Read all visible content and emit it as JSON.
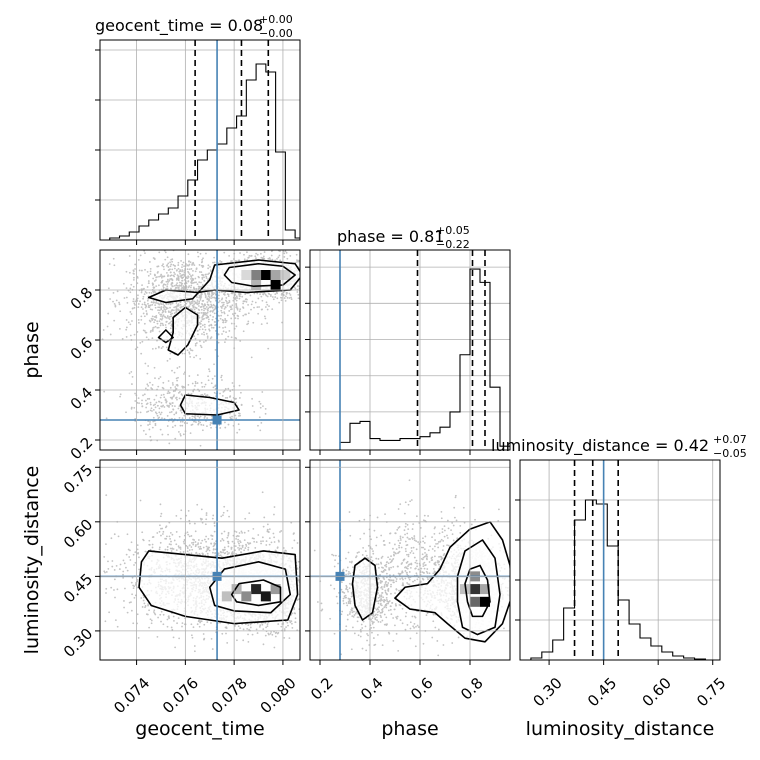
{
  "chart_data": {
    "type": "corner",
    "parameters": [
      "geocent_time",
      "phase",
      "luminosity_distance"
    ],
    "truths": {
      "geocent_time": 0.0773,
      "phase": 0.28,
      "luminosity_distance": 0.45
    },
    "truth_color": "#4682b4",
    "colors": {
      "grid": "#b0b0b0",
      "hist": "#000000",
      "truth": "#4682b4"
    },
    "titles": {
      "geocent_time": {
        "text": "geocent_time = 0.08",
        "plus": "+0.00",
        "minus": "−0.00"
      },
      "phase": {
        "text": "phase = 0.81",
        "plus": "+0.05",
        "minus": "−0.22"
      },
      "luminosity_distance": {
        "text": "luminosity_distance = 0.42",
        "plus": "+0.07",
        "minus": "−0.05"
      }
    },
    "axis_labels": {
      "x": [
        "geocent_time",
        "phase",
        "luminosity_distance"
      ],
      "y": [
        "phase",
        "luminosity_distance"
      ]
    },
    "ranges": {
      "geocent_time": [
        0.0725,
        0.0807
      ],
      "phase": [
        0.16,
        0.96
      ],
      "luminosity_distance": [
        0.22,
        0.77
      ]
    },
    "ticks": {
      "geocent_time": [
        0.074,
        0.076,
        0.078,
        0.08
      ],
      "phase_x": [
        0.2,
        0.4,
        0.6,
        0.8
      ],
      "phase_y": [
        0.2,
        0.4,
        0.6,
        0.8
      ],
      "luminosity_distance": [
        0.3,
        0.45,
        0.6,
        0.75
      ]
    },
    "tick_labels": {
      "geocent_time": [
        "0.074",
        "0.076",
        "0.078",
        "0.080"
      ],
      "phase_x": [
        "0.2",
        "0.4",
        "0.6",
        "0.8"
      ],
      "phase_y": [
        "0.2",
        "0.4",
        "0.6",
        "0.8"
      ],
      "luminosity_distance": [
        "0.30",
        "0.45",
        "0.60",
        "0.75"
      ]
    },
    "quantiles": {
      "geocent_time": [
        0.0764,
        0.0783,
        0.0794
      ],
      "phase": [
        0.59,
        0.81,
        0.86
      ],
      "luminosity_distance": [
        0.37,
        0.42,
        0.49
      ]
    },
    "histograms": {
      "geocent_time": {
        "edges": [
          0.0725,
          0.0729,
          0.0733,
          0.0737,
          0.0741,
          0.0745,
          0.0749,
          0.0753,
          0.0757,
          0.0761,
          0.0765,
          0.0769,
          0.0773,
          0.0777,
          0.0781,
          0.0785,
          0.0789,
          0.0793,
          0.0797,
          0.0801,
          0.0805,
          0.0807
        ],
        "values": [
          0.0,
          0.01,
          0.02,
          0.04,
          0.07,
          0.1,
          0.13,
          0.16,
          0.22,
          0.3,
          0.4,
          0.45,
          0.48,
          0.56,
          0.62,
          0.8,
          0.88,
          0.84,
          0.44,
          0.05,
          0.01
        ]
      },
      "phase": {
        "edges": [
          0.16,
          0.2,
          0.24,
          0.28,
          0.32,
          0.36,
          0.4,
          0.44,
          0.48,
          0.52,
          0.56,
          0.6,
          0.64,
          0.68,
          0.72,
          0.76,
          0.8,
          0.84,
          0.88,
          0.92,
          0.96
        ],
        "values": [
          0.0,
          0.0,
          0.0,
          0.04,
          0.14,
          0.15,
          0.06,
          0.05,
          0.05,
          0.06,
          0.06,
          0.07,
          0.09,
          0.12,
          0.2,
          0.5,
          0.95,
          0.88,
          0.33,
          0.02
        ]
      },
      "luminosity_distance": {
        "edges": [
          0.22,
          0.25,
          0.28,
          0.31,
          0.34,
          0.37,
          0.4,
          0.43,
          0.46,
          0.49,
          0.52,
          0.55,
          0.58,
          0.61,
          0.64,
          0.67,
          0.7,
          0.73,
          0.77
        ],
        "values": [
          0.0,
          0.01,
          0.04,
          0.1,
          0.26,
          0.7,
          0.8,
          0.78,
          0.57,
          0.3,
          0.18,
          0.11,
          0.07,
          0.04,
          0.02,
          0.01,
          0.005,
          0.0
        ]
      }
    },
    "hist_ylim": {
      "geocent_time": [
        0,
        1.0
      ],
      "phase": [
        0,
        1.05
      ],
      "luminosity_distance": [
        0,
        1.0
      ]
    },
    "hist_yticks": {
      "geocent_time": [
        0.2,
        0.45,
        0.7,
        0.95
      ],
      "phase": [
        0.2,
        0.39,
        0.58,
        0.77,
        0.96
      ],
      "luminosity_distance": [
        0.2,
        0.4,
        0.6,
        0.8
      ]
    },
    "pairs": [
      {
        "x": "geocent_time",
        "y": "phase",
        "blobs": [
          {
            "cx": 0.0793,
            "cy": 0.85,
            "sx": 0.0009,
            "sy": 0.045,
            "n": 900
          },
          {
            "cx": 0.076,
            "cy": 0.76,
            "sx": 0.0012,
            "sy": 0.09,
            "n": 1400
          },
          {
            "cx": 0.0762,
            "cy": 0.34,
            "sx": 0.0012,
            "sy": 0.06,
            "n": 500
          }
        ],
        "density_cells": [
          {
            "x": 0.0793,
            "y": 0.86,
            "v": 1.0
          },
          {
            "x": 0.0797,
            "y": 0.82,
            "v": 1.0
          },
          {
            "x": 0.0789,
            "y": 0.86,
            "v": 0.5
          },
          {
            "x": 0.0797,
            "y": 0.86,
            "v": 0.35
          },
          {
            "x": 0.0789,
            "y": 0.82,
            "v": 0.3
          },
          {
            "x": 0.0801,
            "y": 0.86,
            "v": 0.2
          },
          {
            "x": 0.0785,
            "y": 0.86,
            "v": 0.15
          }
        ],
        "contours": [
          [
            [
              0.0778,
              0.89
            ],
            [
              0.079,
              0.905
            ],
            [
              0.08,
              0.895
            ],
            [
              0.0805,
              0.86
            ],
            [
              0.08,
              0.82
            ],
            [
              0.0788,
              0.815
            ],
            [
              0.0779,
              0.83
            ],
            [
              0.0776,
              0.86
            ],
            [
              0.0778,
              0.89
            ]
          ],
          [
            [
              0.0772,
              0.9
            ],
            [
              0.079,
              0.92
            ],
            [
              0.0805,
              0.905
            ],
            [
              0.0808,
              0.86
            ],
            [
              0.0803,
              0.8
            ],
            [
              0.0785,
              0.79
            ],
            [
              0.0772,
              0.8
            ],
            [
              0.0765,
              0.79
            ],
            [
              0.0752,
              0.8
            ],
            [
              0.0745,
              0.77
            ],
            [
              0.0752,
              0.75
            ],
            [
              0.0763,
              0.765
            ],
            [
              0.077,
              0.84
            ],
            [
              0.0772,
              0.9
            ]
          ],
          [
            [
              0.076,
              0.73
            ],
            [
              0.0765,
              0.7
            ],
            [
              0.0765,
              0.66
            ],
            [
              0.0761,
              0.58
            ],
            [
              0.0757,
              0.54
            ],
            [
              0.0753,
              0.56
            ],
            [
              0.0755,
              0.63
            ],
            [
              0.0755,
              0.69
            ],
            [
              0.076,
              0.73
            ]
          ],
          [
            [
              0.0752,
              0.64
            ],
            [
              0.0755,
              0.61
            ],
            [
              0.0752,
              0.59
            ],
            [
              0.0749,
              0.61
            ],
            [
              0.0752,
              0.64
            ]
          ],
          [
            [
              0.076,
              0.38
            ],
            [
              0.077,
              0.37
            ],
            [
              0.078,
              0.35
            ],
            [
              0.0782,
              0.32
            ],
            [
              0.0773,
              0.3
            ],
            [
              0.076,
              0.305
            ],
            [
              0.0758,
              0.34
            ],
            [
              0.076,
              0.38
            ]
          ]
        ]
      },
      {
        "x": "geocent_time",
        "y": "luminosity_distance",
        "blobs": [
          {
            "cx": 0.079,
            "cy": 0.41,
            "sx": 0.001,
            "sy": 0.05,
            "n": 1400
          },
          {
            "cx": 0.077,
            "cy": 0.45,
            "sx": 0.0018,
            "sy": 0.07,
            "n": 1600
          }
        ],
        "density_cells": [
          {
            "x": 0.0789,
            "y": 0.415,
            "v": 0.85
          },
          {
            "x": 0.0793,
            "y": 0.395,
            "v": 0.9
          },
          {
            "x": 0.0785,
            "y": 0.395,
            "v": 0.45
          },
          {
            "x": 0.0797,
            "y": 0.415,
            "v": 0.4
          },
          {
            "x": 0.0781,
            "y": 0.415,
            "v": 0.3
          },
          {
            "x": 0.0777,
            "y": 0.395,
            "v": 0.25
          }
        ],
        "contours": [
          [
            [
              0.0782,
              0.43
            ],
            [
              0.0792,
              0.44
            ],
            [
              0.0799,
              0.42
            ],
            [
              0.0799,
              0.38
            ],
            [
              0.079,
              0.37
            ],
            [
              0.0781,
              0.38
            ],
            [
              0.0779,
              0.4
            ],
            [
              0.0782,
              0.43
            ]
          ],
          [
            [
              0.0776,
              0.47
            ],
            [
              0.079,
              0.49
            ],
            [
              0.0801,
              0.47
            ],
            [
              0.0803,
              0.4
            ],
            [
              0.0795,
              0.35
            ],
            [
              0.078,
              0.355
            ],
            [
              0.0772,
              0.37
            ],
            [
              0.077,
              0.42
            ],
            [
              0.0776,
              0.47
            ]
          ],
          [
            [
              0.0745,
              0.52
            ],
            [
              0.076,
              0.51
            ],
            [
              0.0775,
              0.5
            ],
            [
              0.0792,
              0.52
            ],
            [
              0.0805,
              0.51
            ],
            [
              0.0806,
              0.4
            ],
            [
              0.0802,
              0.33
            ],
            [
              0.078,
              0.32
            ],
            [
              0.076,
              0.34
            ],
            [
              0.0746,
              0.37
            ],
            [
              0.0741,
              0.42
            ],
            [
              0.0742,
              0.49
            ],
            [
              0.0745,
              0.52
            ]
          ]
        ]
      },
      {
        "x": "phase",
        "y": "luminosity_distance",
        "blobs": [
          {
            "cx": 0.82,
            "cy": 0.42,
            "sx": 0.05,
            "sy": 0.05,
            "n": 1400
          },
          {
            "cx": 0.38,
            "cy": 0.4,
            "sx": 0.05,
            "sy": 0.05,
            "n": 500
          },
          {
            "cx": 0.62,
            "cy": 0.45,
            "sx": 0.15,
            "sy": 0.08,
            "n": 900
          }
        ],
        "density_cells": [
          {
            "x": 0.82,
            "y": 0.415,
            "v": 0.8
          },
          {
            "x": 0.86,
            "y": 0.38,
            "v": 1.0
          },
          {
            "x": 0.82,
            "y": 0.38,
            "v": 0.6
          },
          {
            "x": 0.82,
            "y": 0.45,
            "v": 0.45
          },
          {
            "x": 0.86,
            "y": 0.415,
            "v": 0.35
          },
          {
            "x": 0.78,
            "y": 0.415,
            "v": 0.25
          }
        ],
        "contours": [
          [
            [
              0.8,
              0.47
            ],
            [
              0.84,
              0.48
            ],
            [
              0.87,
              0.44
            ],
            [
              0.88,
              0.38
            ],
            [
              0.85,
              0.34
            ],
            [
              0.81,
              0.34
            ],
            [
              0.79,
              0.38
            ],
            [
              0.78,
              0.43
            ],
            [
              0.8,
              0.47
            ]
          ],
          [
            [
              0.78,
              0.52
            ],
            [
              0.85,
              0.55
            ],
            [
              0.9,
              0.5
            ],
            [
              0.92,
              0.4
            ],
            [
              0.9,
              0.31
            ],
            [
              0.83,
              0.29
            ],
            [
              0.77,
              0.31
            ],
            [
              0.75,
              0.38
            ],
            [
              0.75,
              0.45
            ],
            [
              0.78,
              0.52
            ]
          ],
          [
            [
              0.8,
              0.58
            ],
            [
              0.88,
              0.6
            ],
            [
              0.93,
              0.55
            ],
            [
              0.96,
              0.48
            ],
            [
              0.97,
              0.4
            ],
            [
              0.93,
              0.32
            ],
            [
              0.86,
              0.27
            ],
            [
              0.78,
              0.28
            ],
            [
              0.71,
              0.32
            ],
            [
              0.66,
              0.35
            ],
            [
              0.56,
              0.36
            ],
            [
              0.5,
              0.39
            ],
            [
              0.54,
              0.42
            ],
            [
              0.63,
              0.43
            ],
            [
              0.68,
              0.47
            ],
            [
              0.72,
              0.53
            ],
            [
              0.8,
              0.58
            ]
          ],
          [
            [
              0.34,
              0.48
            ],
            [
              0.38,
              0.5
            ],
            [
              0.42,
              0.48
            ],
            [
              0.43,
              0.42
            ],
            [
              0.41,
              0.35
            ],
            [
              0.37,
              0.33
            ],
            [
              0.34,
              0.37
            ],
            [
              0.33,
              0.43
            ],
            [
              0.34,
              0.48
            ]
          ]
        ]
      }
    ]
  }
}
